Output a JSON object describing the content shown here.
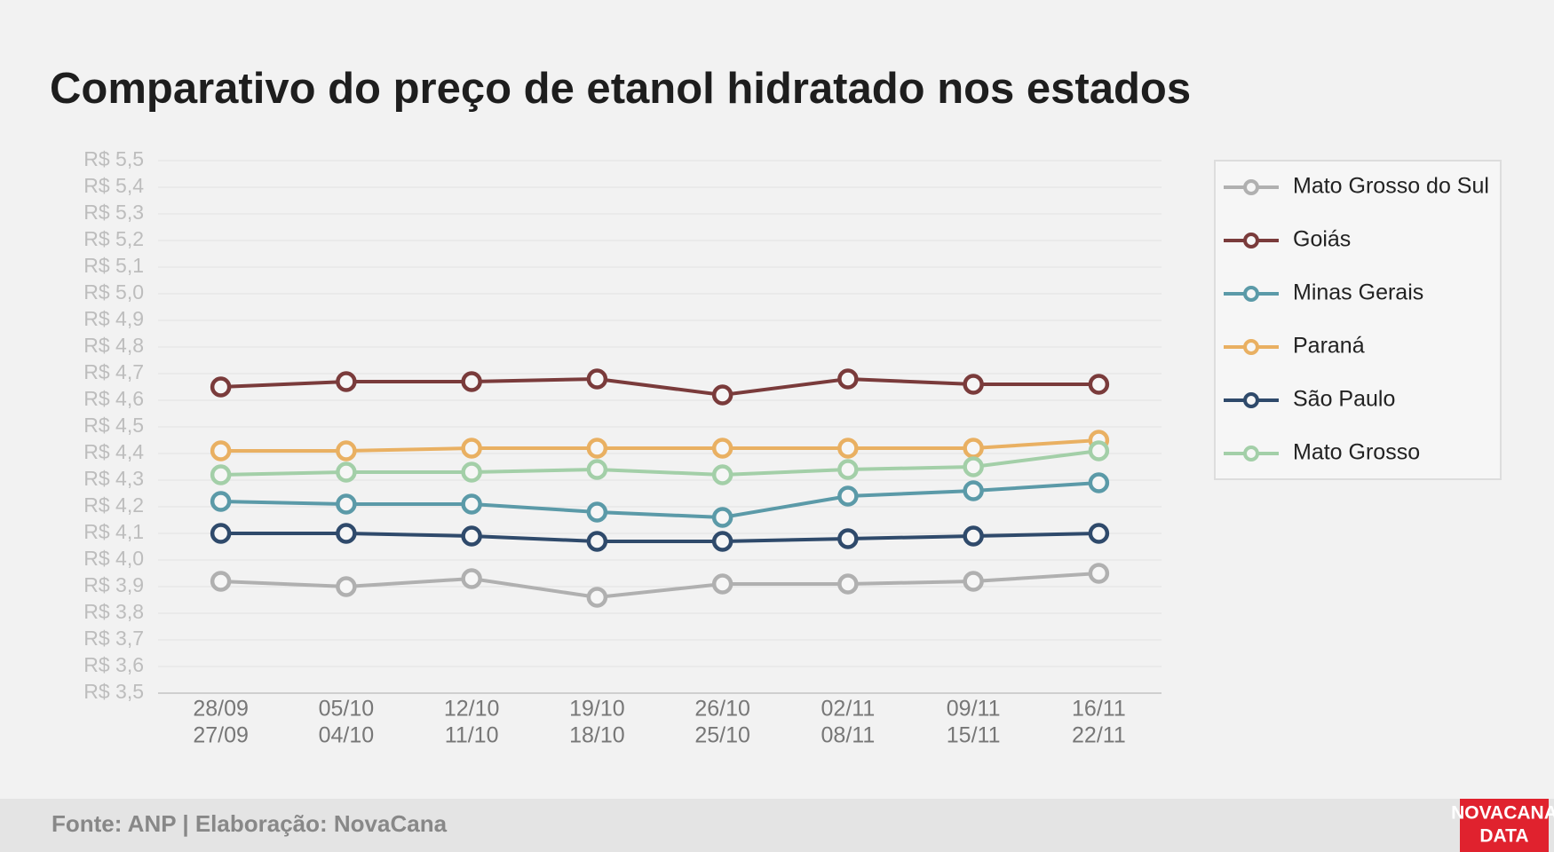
{
  "chart_data": {
    "type": "line",
    "title": "Comparativo do preço de etanol hidratado nos estados",
    "categories": [
      [
        "28/09",
        "27/09"
      ],
      [
        "05/10",
        "04/10"
      ],
      [
        "12/10",
        "11/10"
      ],
      [
        "19/10",
        "18/10"
      ],
      [
        "26/10",
        "25/10"
      ],
      [
        "02/11",
        "08/11"
      ],
      [
        "09/11",
        "15/11"
      ],
      [
        "16/11",
        "22/11"
      ]
    ],
    "series": [
      {
        "name": "Mato Grosso do Sul",
        "color": "#b0b0b0",
        "values": [
          3.92,
          3.9,
          3.93,
          3.86,
          3.91,
          3.91,
          3.92,
          3.95
        ]
      },
      {
        "name": "Goiás",
        "color": "#7a3b3b",
        "values": [
          4.65,
          4.67,
          4.67,
          4.68,
          4.62,
          4.68,
          4.66,
          4.66
        ]
      },
      {
        "name": "Minas Gerais",
        "color": "#5b9aa8",
        "values": [
          4.22,
          4.21,
          4.21,
          4.18,
          4.16,
          4.24,
          4.26,
          4.29
        ]
      },
      {
        "name": "Paraná",
        "color": "#e9b062",
        "values": [
          4.41,
          4.41,
          4.42,
          4.42,
          4.42,
          4.42,
          4.42,
          4.45
        ]
      },
      {
        "name": "São Paulo",
        "color": "#2f4a6b",
        "values": [
          4.1,
          4.1,
          4.09,
          4.07,
          4.07,
          4.08,
          4.09,
          4.1
        ]
      },
      {
        "name": "Mato Grosso",
        "color": "#a3cfa8",
        "values": [
          4.32,
          4.33,
          4.33,
          4.34,
          4.32,
          4.34,
          4.35,
          4.41
        ]
      }
    ],
    "ylim": [
      3.5,
      5.5
    ],
    "yticks": [
      {
        "value": 3.5,
        "label": "R$ 3,5"
      },
      {
        "value": 3.6,
        "label": "R$ 3,6"
      },
      {
        "value": 3.7,
        "label": "R$ 3,7"
      },
      {
        "value": 3.8,
        "label": "R$ 3,8"
      },
      {
        "value": 3.9,
        "label": "R$ 3,9"
      },
      {
        "value": 4.0,
        "label": "R$ 4,0"
      },
      {
        "value": 4.1,
        "label": "R$ 4,1"
      },
      {
        "value": 4.2,
        "label": "R$ 4,2"
      },
      {
        "value": 4.3,
        "label": "R$ 4,3"
      },
      {
        "value": 4.4,
        "label": "R$ 4,4"
      },
      {
        "value": 4.5,
        "label": "R$ 4,5"
      },
      {
        "value": 4.6,
        "label": "R$ 4,6"
      },
      {
        "value": 4.7,
        "label": "R$ 4,7"
      },
      {
        "value": 4.8,
        "label": "R$ 4,8"
      },
      {
        "value": 4.9,
        "label": "R$ 4,9"
      },
      {
        "value": 5.0,
        "label": "R$ 5,0"
      },
      {
        "value": 5.1,
        "label": "R$ 5,1"
      },
      {
        "value": 5.2,
        "label": "R$ 5,2"
      },
      {
        "value": 5.3,
        "label": "R$ 5,3"
      },
      {
        "value": 5.4,
        "label": "R$ 5,4"
      },
      {
        "value": 5.5,
        "label": "R$ 5,5"
      }
    ],
    "grid": true,
    "legend": "right"
  },
  "footer": {
    "source": "Fonte: ANP | Elaboração: NovaCana",
    "logo": [
      "NOVACANA",
      "DATA"
    ]
  }
}
